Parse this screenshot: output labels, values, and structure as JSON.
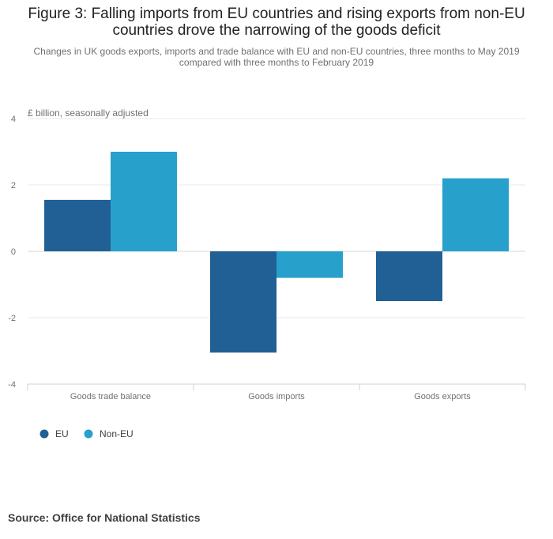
{
  "title": "Figure 3: Falling imports from EU countries and rising exports from non-EU countries drove the narrowing of the goods deficit",
  "subtitle": "Changes in UK goods exports, imports and trade balance with EU and non-EU countries, three months to May 2019 compared with three months to February 2019",
  "source": "Source: Office for National Statistics",
  "chart_data": {
    "type": "bar",
    "title": "Figure 3: Falling imports from EU countries and rising exports from non-EU countries drove the narrowing of the goods deficit",
    "ylabel": "£ billion, seasonally adjusted",
    "xlabel": "",
    "categories": [
      "Goods trade balance",
      "Goods imports",
      "Goods exports"
    ],
    "series": [
      {
        "name": "EU",
        "color": "#206095",
        "values": [
          1.55,
          -3.05,
          -1.5
        ]
      },
      {
        "name": "Non-EU",
        "color": "#27a0cc",
        "values": [
          3.0,
          -0.8,
          2.2
        ]
      }
    ],
    "ylim": [
      -4,
      4
    ],
    "yticks": [
      4,
      2,
      0,
      -2,
      -4
    ],
    "grid": true,
    "legend": "bottom-left"
  }
}
